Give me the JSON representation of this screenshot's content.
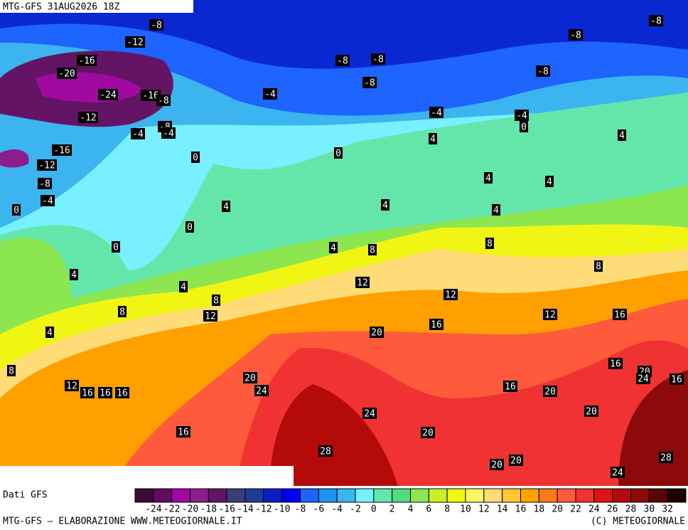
{
  "header": {
    "title": "MTG-GFS 31AUG2026 18Z"
  },
  "map": {
    "contour_labels": [
      -8,
      -12,
      -8,
      -8,
      -16,
      -20,
      -8,
      -8,
      -8,
      -8,
      -24,
      -16,
      -8,
      -4,
      -12,
      -4,
      -4,
      0,
      -8,
      -4,
      -4,
      -16,
      4,
      4,
      0,
      0,
      -12,
      4,
      4,
      -8,
      -4,
      0,
      4,
      4,
      4,
      0,
      0,
      4,
      8,
      8,
      8,
      4,
      4,
      12,
      8,
      8,
      12,
      12,
      12,
      16,
      4,
      20,
      16,
      8,
      16,
      20,
      24,
      16,
      12,
      16,
      16,
      16,
      20,
      24,
      16,
      20,
      20,
      24,
      16,
      20,
      28,
      20,
      20,
      28,
      24
    ]
  },
  "colorbar": {
    "source": "Dati GFS",
    "ticks": [
      -24,
      -22,
      -20,
      -18,
      -16,
      -14,
      -12,
      -10,
      -8,
      -6,
      -4,
      -2,
      0,
      2,
      4,
      6,
      8,
      10,
      12,
      14,
      16,
      18,
      20,
      22,
      24,
      26,
      28,
      30,
      32
    ],
    "colors": [
      "#3c0a3c",
      "#640a64",
      "#a00aa0",
      "#8c1e8c",
      "#641464",
      "#3c3c78",
      "#1e3c96",
      "#0a1ec8",
      "#0000f0",
      "#1e64ff",
      "#1e96f0",
      "#3cb4f0",
      "#78f0ff",
      "#64e6aa",
      "#50dc78",
      "#8ce650",
      "#c8f028",
      "#f0f514",
      "#fff564",
      "#ffdc78",
      "#ffc832",
      "#ffa000",
      "#ff7814",
      "#ff5a3c",
      "#f03232",
      "#dc1414",
      "#b40a0a",
      "#8c0a0a",
      "#5a0505",
      "#1e0000"
    ]
  },
  "footer": {
    "left": "MTG-GFS — ELABORAZIONE WWW.METEOGIORNALE.IT",
    "right": "(C) METEOGIORNALE"
  }
}
